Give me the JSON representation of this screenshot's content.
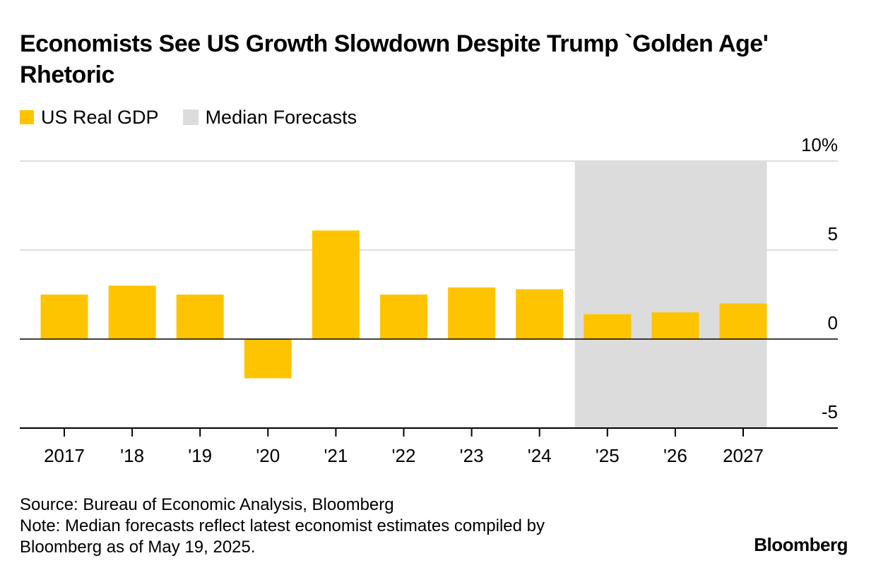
{
  "title": "Economists See US Growth Slowdown Despite Trump `Golden Age' Rhetoric",
  "legend": {
    "gdp_label": "US Real GDP",
    "forecast_label": "Median Forecasts"
  },
  "colors": {
    "bar": "#FFC400",
    "forecast_shade": "#DCDCDC",
    "gridline": "#DDDDDD",
    "axis": "#000000"
  },
  "chart_data": {
    "type": "bar",
    "categories": [
      "2017",
      "'18",
      "'19",
      "'20",
      "'21",
      "'22",
      "'23",
      "'24",
      "'25",
      "'26",
      "2027"
    ],
    "series": [
      {
        "name": "US Real GDP",
        "values": [
          2.5,
          3.0,
          2.5,
          -2.2,
          6.1,
          2.5,
          2.9,
          2.8,
          1.4,
          1.5,
          2.0
        ]
      }
    ],
    "forecast_categories": [
      "'25",
      "'26",
      "2027"
    ],
    "ylim": [
      -5,
      10
    ],
    "yticks": [
      -5,
      0,
      5,
      10
    ],
    "ytick_labels": [
      "-5",
      "0",
      "5",
      "10%"
    ],
    "grid": true,
    "legend_position": "top-left"
  },
  "footer": {
    "source": "Source: Bureau of Economic Analysis, Bloomberg",
    "note_line1": "Note: Median forecasts reflect latest economist estimates compiled by",
    "note_line2": "Bloomberg as of May 19, 2025."
  },
  "brand": "Bloomberg"
}
